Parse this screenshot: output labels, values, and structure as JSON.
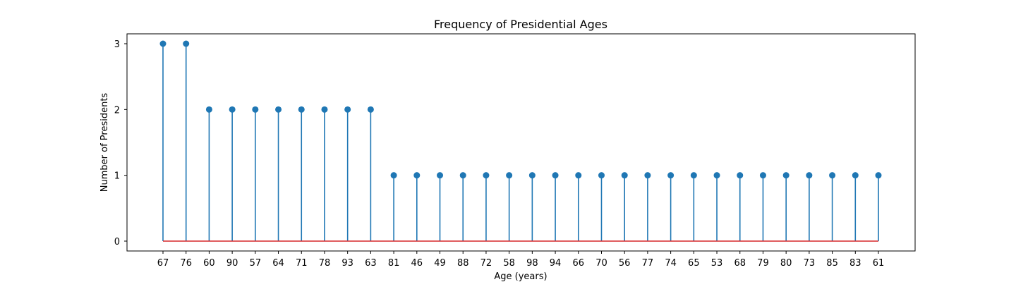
{
  "chart_data": {
    "type": "stem",
    "title": "Frequency of Presidential Ages",
    "xlabel": "Age (years)",
    "ylabel": "Number of Presidents",
    "categories": [
      "67",
      "76",
      "60",
      "90",
      "57",
      "64",
      "71",
      "78",
      "93",
      "63",
      "81",
      "46",
      "49",
      "88",
      "72",
      "58",
      "98",
      "94",
      "66",
      "70",
      "56",
      "77",
      "74",
      "65",
      "53",
      "68",
      "79",
      "80",
      "73",
      "85",
      "83",
      "61"
    ],
    "values": [
      3,
      3,
      2,
      2,
      2,
      2,
      2,
      2,
      2,
      2,
      1,
      1,
      1,
      1,
      1,
      1,
      1,
      1,
      1,
      1,
      1,
      1,
      1,
      1,
      1,
      1,
      1,
      1,
      1,
      1,
      1,
      1
    ],
    "yticks": [
      0,
      1,
      2,
      3
    ],
    "ylim": [
      -0.15,
      3.15
    ],
    "grid": false,
    "colors": {
      "stem": "#1f77b4",
      "marker": "#1f77b4",
      "baseline": "#d62728"
    }
  }
}
